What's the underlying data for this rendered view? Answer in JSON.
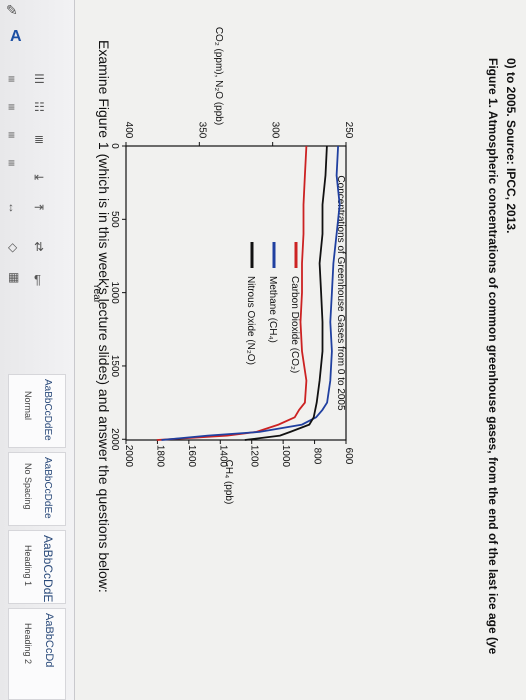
{
  "ribbon": {
    "font_glyph": "A",
    "styles": [
      {
        "sample": "AaBbCcDdEe",
        "name": "Normal"
      },
      {
        "sample": "AaBbCcDdEe",
        "name": "No Spacing"
      },
      {
        "sample": "AaBbCcDdE",
        "name": "Heading 1"
      },
      {
        "sample": "AaBbCcDd",
        "name": "Heading 2"
      }
    ],
    "pilcrow": "¶"
  },
  "document": {
    "instruction": "Examine Figure 1 (which is in this week's lecture slides) and answer the questions below:",
    "caption_line1": "Figure 1. Atmospheric concentrations of common greenhouse gases, from the end of the last ice age (ye",
    "caption_line2": "0) to 2005. Source: IPCC, 2013."
  },
  "chart_data": {
    "type": "line",
    "title": "Concentrations of Greenhouse Gases from 0 to 2005",
    "xlabel": "Year",
    "ylabel_left": "CO₂ (ppm), N₂O (ppb)",
    "ylabel_right": "CH₄ (ppb)",
    "x_ticks": [
      "0",
      "500",
      "1000",
      "1500",
      "2000"
    ],
    "yleft_ticks": [
      "250",
      "300",
      "350",
      "400"
    ],
    "yright_ticks": [
      "600",
      "800",
      "1000",
      "1200",
      "1400",
      "1600",
      "1800",
      "2000"
    ],
    "xlim": [
      0,
      2005
    ],
    "yleft_lim": [
      250,
      400
    ],
    "yright_lim": [
      600,
      2000
    ],
    "legend": [
      "Carbon Dioxide (CO₂)",
      "Methane (CH₄)",
      "Nitrous Oxide (N₂O)"
    ],
    "series": [
      {
        "name": "Carbon Dioxide (CO₂)",
        "axis": "left",
        "color": "#cc2222",
        "x": [
          0,
          200,
          400,
          600,
          800,
          1000,
          1200,
          1400,
          1600,
          1750,
          1800,
          1850,
          1900,
          1950,
          1975,
          2005
        ],
        "y": [
          277,
          278,
          279,
          279,
          280,
          280,
          281,
          280,
          277,
          278,
          282,
          285,
          296,
          311,
          331,
          379
        ]
      },
      {
        "name": "Methane (CH₄)",
        "axis": "right",
        "color": "#2040a0",
        "x": [
          0,
          200,
          400,
          600,
          800,
          1000,
          1200,
          1400,
          1600,
          1750,
          1800,
          1850,
          1900,
          1950,
          1975,
          2005
        ],
        "y": [
          650,
          660,
          640,
          660,
          680,
          690,
          700,
          690,
          700,
          720,
          750,
          790,
          880,
          1150,
          1480,
          1774
        ]
      },
      {
        "name": "Nitrous Oxide (N₂O)",
        "axis": "left",
        "color": "#111111",
        "x": [
          0,
          200,
          400,
          600,
          800,
          1000,
          1200,
          1400,
          1600,
          1750,
          1800,
          1850,
          1900,
          1950,
          1975,
          2005
        ],
        "y": [
          263,
          264,
          266,
          266,
          268,
          267,
          266,
          266,
          268,
          270,
          271,
          272,
          275,
          288,
          295,
          319
        ]
      }
    ],
    "grid": false,
    "legend_position": "top-left"
  }
}
